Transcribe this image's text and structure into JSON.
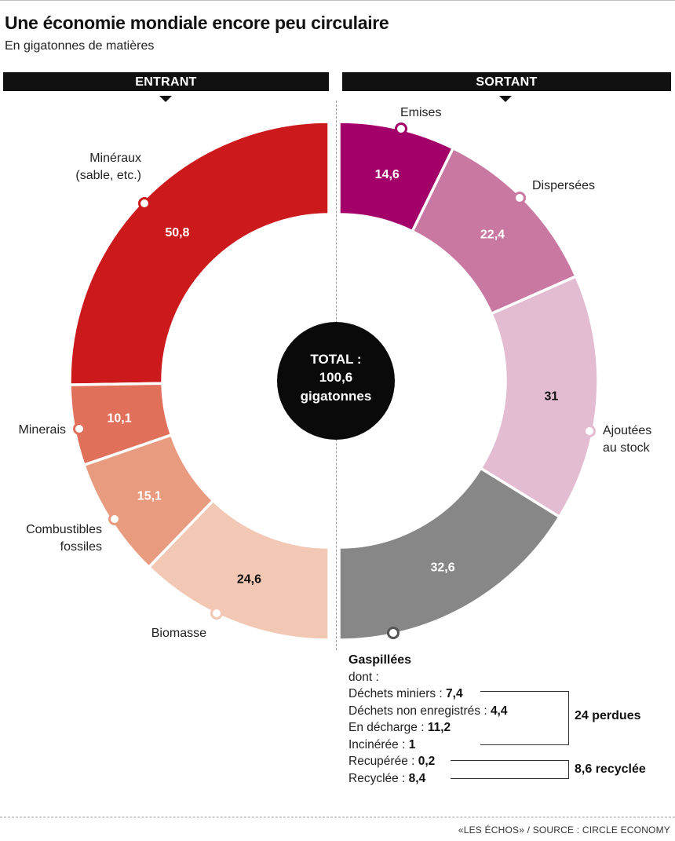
{
  "header": {
    "title": "Une économie mondiale encore peu circulaire",
    "subtitle": "En gigatonnes de matières"
  },
  "bands": {
    "left": "ENTRANT",
    "right": "SORTANT"
  },
  "center": {
    "line1": "TOTAL :",
    "line2": "100,6",
    "line3": "gigatonnes"
  },
  "chart_data": {
    "type": "pie",
    "title": "Une économie mondiale encore peu circulaire",
    "unit": "En gigatonnes de matières",
    "total": 100.6,
    "series": [
      {
        "name": "ENTRANT",
        "slices": [
          {
            "label": "Minéraux (sable, etc.)",
            "value": 50.8,
            "display": "50,8",
            "color": "#cc1a1c"
          },
          {
            "label": "Minerais",
            "value": 10.1,
            "display": "10,1",
            "color": "#e0705a"
          },
          {
            "label": "Combustibles fossiles",
            "value": 15.1,
            "display": "15,1",
            "color": "#e99b80"
          },
          {
            "label": "Biomasse",
            "value": 24.6,
            "display": "24,6",
            "color": "#f2c7b3"
          }
        ]
      },
      {
        "name": "SORTANT",
        "slices": [
          {
            "label": "Emises",
            "value": 14.6,
            "display": "14,6",
            "color": "#a4006a"
          },
          {
            "label": "Dispersées",
            "value": 22.4,
            "display": "22,4",
            "color": "#c978a2"
          },
          {
            "label": "Ajoutées au stock",
            "value": 31,
            "display": "31",
            "color": "#e3bcd2"
          },
          {
            "label": "Gaspillées",
            "value": 32.6,
            "display": "32,6",
            "color": "#878787"
          }
        ]
      }
    ]
  },
  "labels": {
    "mineraux": [
      "Minéraux",
      "(sable, etc.)"
    ],
    "minerais": [
      "Minerais"
    ],
    "combustibles": [
      "Combustibles",
      "fossiles"
    ],
    "biomasse": [
      "Biomasse"
    ],
    "emises": [
      "Emises"
    ],
    "dispersees": [
      "Dispersées"
    ],
    "stock": [
      "Ajoutées",
      "au stock"
    ]
  },
  "wasted": {
    "title": "Gaspillées",
    "dont": "dont :",
    "items": [
      {
        "label": "Déchets miniers : ",
        "value": "7,4"
      },
      {
        "label": "Déchets non enregistrés : ",
        "value": "4,4"
      },
      {
        "label": "En décharge : ",
        "value": "11,2"
      },
      {
        "label": "Incinérée : ",
        "value": "1"
      },
      {
        "label": "Recupérée : ",
        "value": "0,2"
      },
      {
        "label": "Recyclée : ",
        "value": "8,4"
      }
    ],
    "group_lost": "24 perdues",
    "group_recycled": "8,6 recyclée"
  },
  "source": "«LES ÉCHOS» / SOURCE : CIRCLE ECONOMY"
}
